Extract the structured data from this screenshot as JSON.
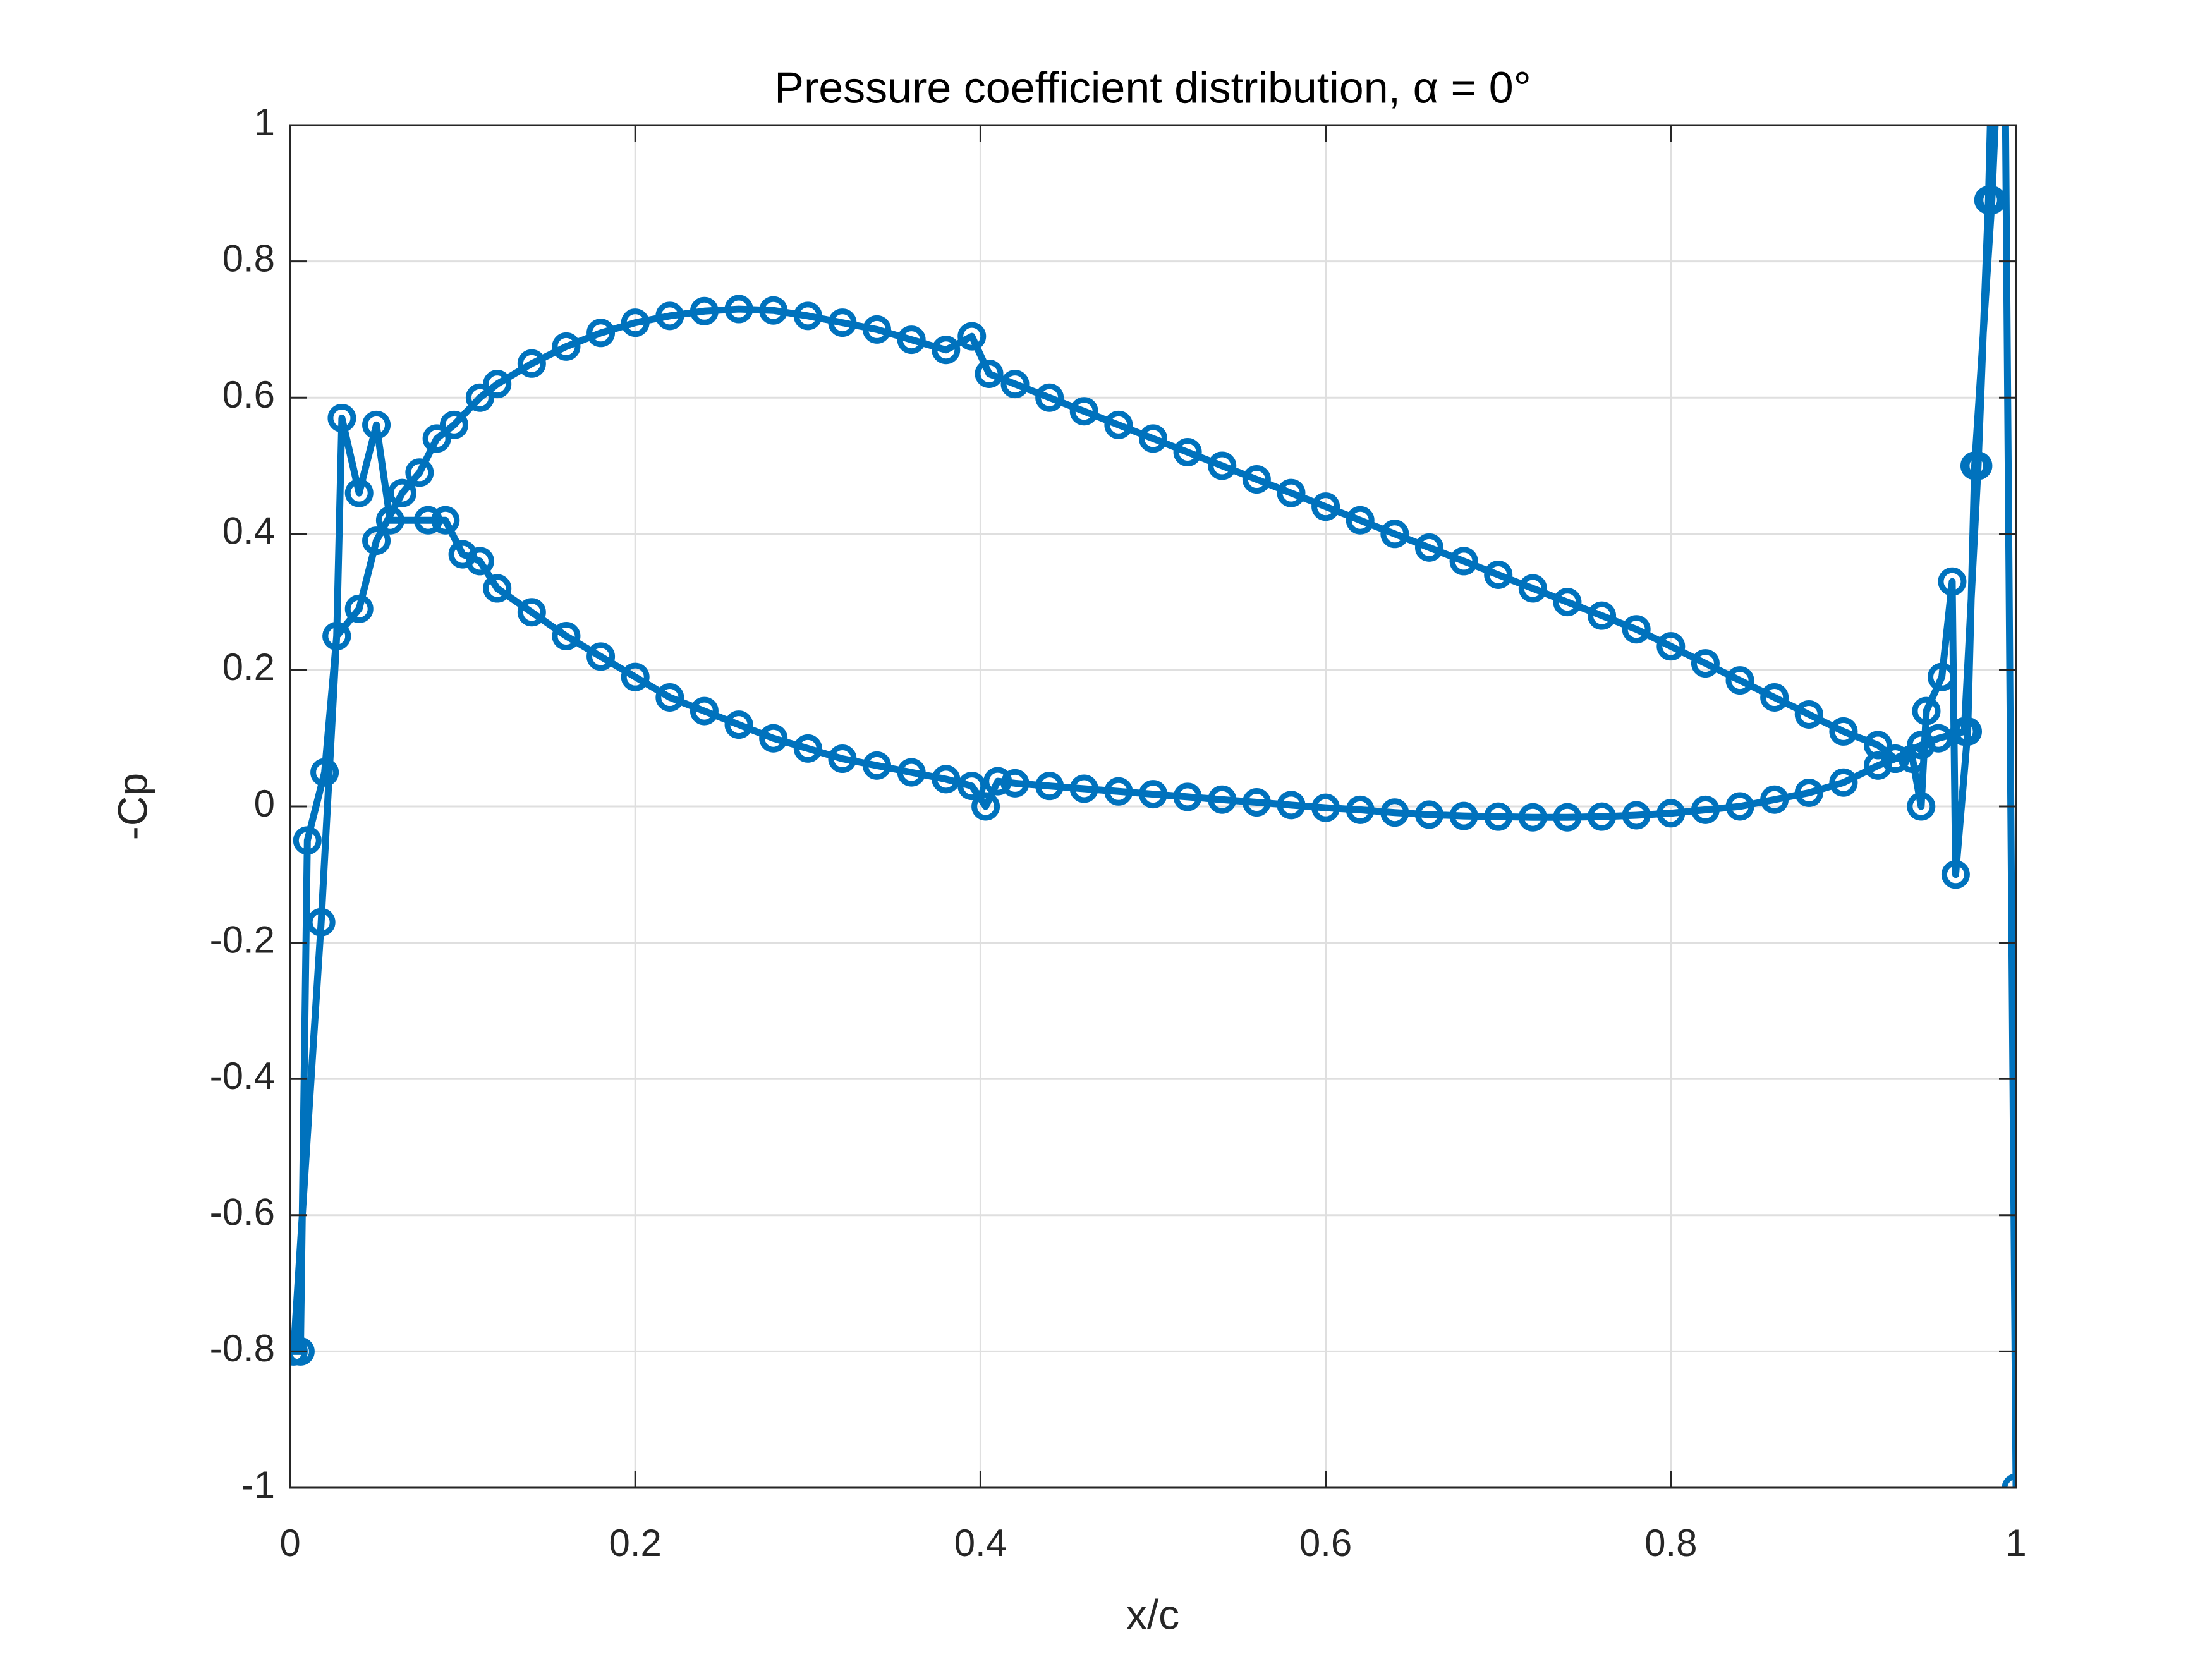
{
  "chart_data": {
    "type": "line",
    "title": "Pressure coefficient distribution, α = 0°",
    "xlabel": "x/c",
    "ylabel": "-Cp",
    "x": [
      1,
      0.993,
      0.986,
      0.976,
      0.972,
      0.965,
      0.963,
      0.957,
      0.948,
      0.945,
      0.94,
      0.93,
      0.92,
      0.9,
      0.88,
      0.86,
      0.84,
      0.82,
      0.8,
      0.78,
      0.76,
      0.74,
      0.72,
      0.7,
      0.68,
      0.66,
      0.64,
      0.62,
      0.6,
      0.58,
      0.56,
      0.54,
      0.52,
      0.5,
      0.48,
      0.46,
      0.44,
      0.42,
      0.41,
      0.403,
      0.395,
      0.38,
      0.36,
      0.34,
      0.32,
      0.3,
      0.28,
      0.26,
      0.24,
      0.22,
      0.2,
      0.18,
      0.16,
      0.14,
      0.12,
      0.11,
      0.1,
      0.09,
      0.08,
      0.058,
      0.05,
      0.04,
      0.03,
      0.027,
      0.02,
      0.01,
      0.006,
      0.002,
      0.018,
      0.027,
      0.04,
      0.05,
      0.065,
      0.075,
      0.085,
      0.095,
      0.11,
      0.12,
      0.14,
      0.16,
      0.18,
      0.2,
      0.22,
      0.24,
      0.26,
      0.28,
      0.3,
      0.32,
      0.34,
      0.36,
      0.38,
      0.395,
      0.405,
      0.42,
      0.44,
      0.46,
      0.48,
      0.5,
      0.52,
      0.54,
      0.56,
      0.58,
      0.6,
      0.62,
      0.64,
      0.66,
      0.68,
      0.7,
      0.72,
      0.74,
      0.76,
      0.78,
      0.8,
      0.82,
      0.84,
      0.86,
      0.88,
      0.9,
      0.92,
      0.93,
      0.945,
      0.955,
      0.97,
      0.978,
      0.984,
      0.988
    ],
    "series": [
      {
        "color": "#0072bd",
        "values": [
          -1,
          1.3,
          0.89,
          0.5,
          0.11,
          -0.1,
          0.33,
          0.19,
          0.14,
          0.0,
          0.07,
          0.07,
          0.06,
          0.035,
          0.02,
          0.01,
          0.0,
          -0.005,
          -0.01,
          -0.013,
          -0.015,
          -0.016,
          -0.016,
          -0.015,
          -0.014,
          -0.012,
          -0.009,
          -0.005,
          -0.002,
          0.002,
          0.006,
          0.01,
          0.014,
          0.018,
          0.022,
          0.026,
          0.03,
          0.034,
          0.037,
          0.0,
          0.03,
          0.04,
          0.05,
          0.06,
          0.07,
          0.085,
          0.1,
          0.12,
          0.14,
          0.16,
          0.19,
          0.22,
          0.25,
          0.285,
          0.32,
          0.36,
          0.37,
          0.42,
          0.42,
          0.42,
          0.56,
          0.46,
          0.57,
          0.25,
          0.05,
          -0.05,
          -0.8,
          -0.8,
          -0.17,
          0.25,
          0.29,
          0.39,
          0.46,
          0.49,
          0.54,
          0.56,
          0.6,
          0.62,
          0.65,
          0.675,
          0.695,
          0.71,
          0.72,
          0.727,
          0.73,
          0.728,
          0.72,
          0.71,
          0.7,
          0.685,
          0.67,
          0.69,
          0.635,
          0.62,
          0.6,
          0.58,
          0.56,
          0.54,
          0.52,
          0.5,
          0.48,
          0.46,
          0.44,
          0.42,
          0.4,
          0.38,
          0.36,
          0.34,
          0.32,
          0.3,
          0.28,
          0.26,
          0.235,
          0.21,
          0.185,
          0.16,
          0.135,
          0.11,
          0.09,
          0.07,
          0.09,
          0.1,
          0.11,
          0.5,
          0.89,
          1.3
        ]
      }
    ],
    "xlim": [
      0,
      1
    ],
    "ylim": [
      -1,
      1
    ],
    "xticks": [
      0,
      0.2,
      0.4,
      0.6,
      0.8,
      1
    ],
    "yticks": [
      -1,
      -0.8,
      -0.6,
      -0.4,
      -0.2,
      0,
      0.2,
      0.4,
      0.6,
      0.8,
      1
    ],
    "grid": true,
    "marker": "circle"
  }
}
